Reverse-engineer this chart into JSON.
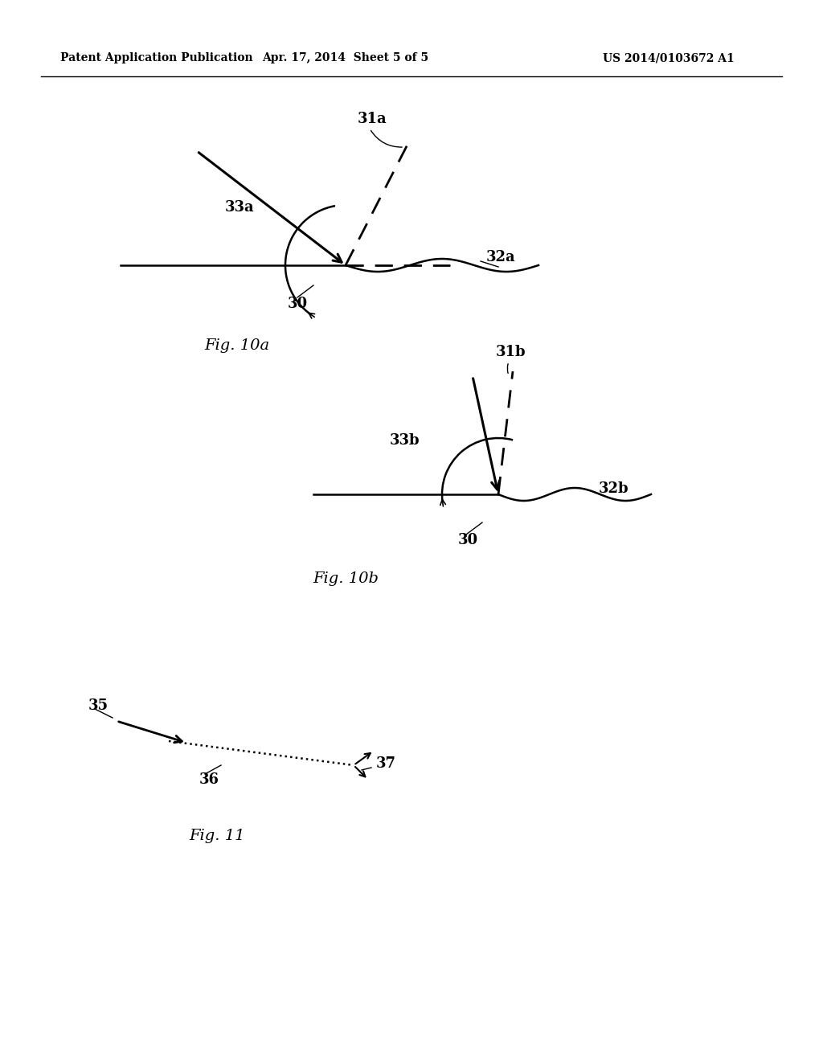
{
  "bg_color": "#ffffff",
  "header_left": "Patent Application Publication",
  "header_mid": "Apr. 17, 2014  Sheet 5 of 5",
  "header_right": "US 2014/0103672 A1",
  "fig10a_caption": "Fig. 10a",
  "fig10b_caption": "Fig. 10b",
  "fig11_caption": "Fig. 11",
  "fig_width": 10.24,
  "fig_height": 13.2
}
